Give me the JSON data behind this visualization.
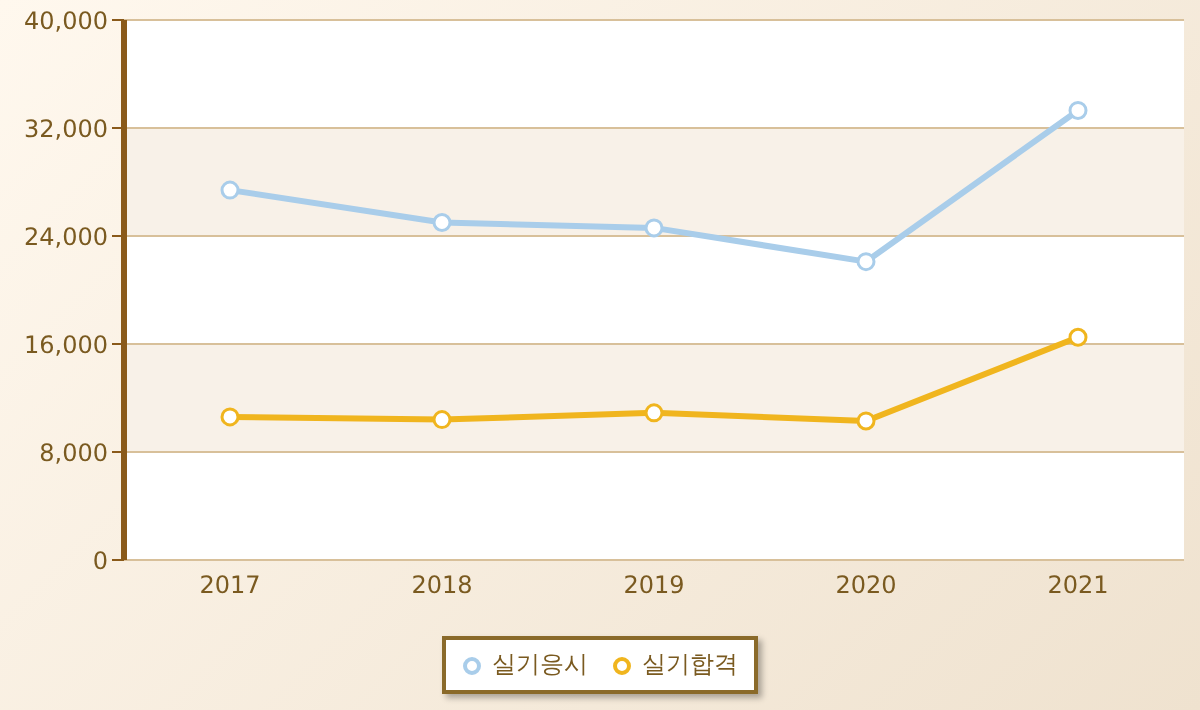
{
  "chart_data": {
    "type": "line",
    "categories": [
      "2017",
      "2018",
      "2019",
      "2020",
      "2021"
    ],
    "series": [
      {
        "name": "실기응시",
        "color": "#a9cdea",
        "values": [
          27400,
          25000,
          24600,
          22100,
          33300
        ]
      },
      {
        "name": "실기합격",
        "color": "#f0b51e",
        "values": [
          10600,
          10400,
          10900,
          10300,
          16500
        ]
      }
    ],
    "ylim": [
      0,
      40000
    ],
    "yticks": [
      {
        "value": 0,
        "label": "0"
      },
      {
        "value": 8000,
        "label": "8,000"
      },
      {
        "value": 16000,
        "label": "16,000"
      },
      {
        "value": 24000,
        "label": "24,000"
      },
      {
        "value": 32000,
        "label": "32,000"
      },
      {
        "value": 40000,
        "label": "40,000"
      }
    ],
    "grid": "y",
    "legend": "bottom",
    "marker": "circle",
    "line_style": "solid"
  }
}
